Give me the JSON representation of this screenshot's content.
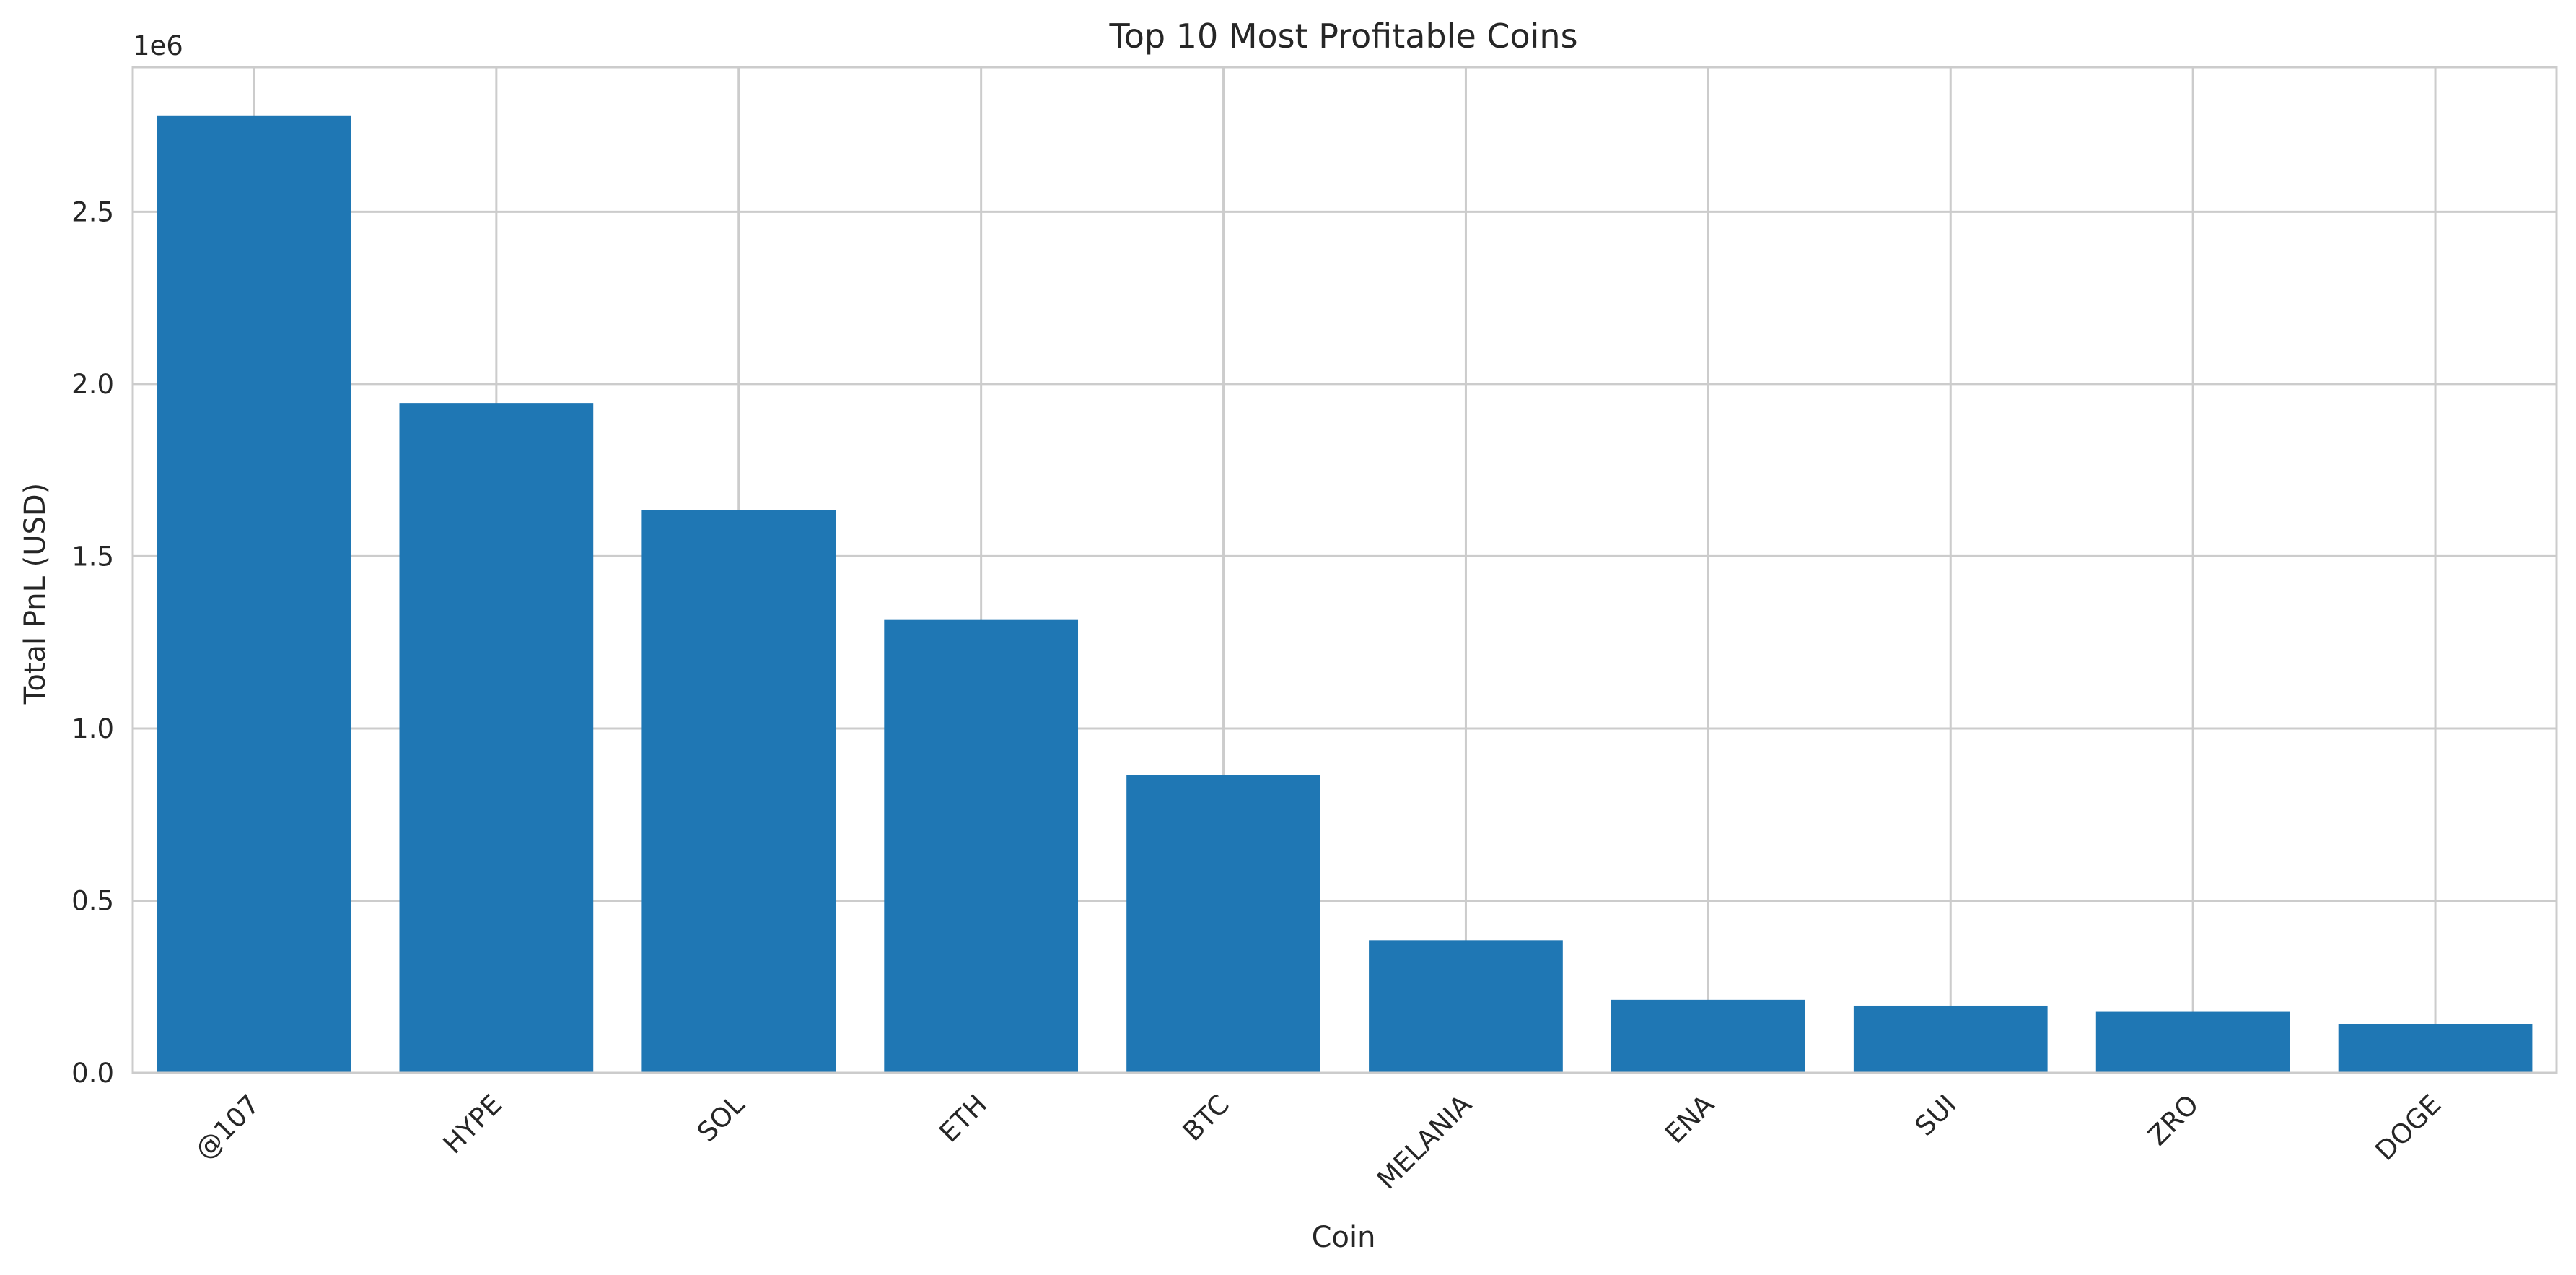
{
  "chart_data": {
    "type": "bar",
    "title": "Top 10 Most Profitable Coins",
    "xlabel": "Coin",
    "ylabel": "Total PnL (USD)",
    "offset_label": "1e6",
    "categories": [
      "@107",
      "HYPE",
      "SOL",
      "ETH",
      "BTC",
      "MELANIA",
      "ENA",
      "SUI",
      "ZRO",
      "DOGE"
    ],
    "values": [
      2780000,
      1945000,
      1635000,
      1315000,
      865000,
      385000,
      212000,
      195000,
      177000,
      142000
    ],
    "ylim": [
      0,
      2920000
    ],
    "yticks": [
      0,
      500000,
      1000000,
      1500000,
      2000000,
      2500000
    ],
    "ytick_labels": [
      "0.0",
      "0.5",
      "1.0",
      "1.5",
      "2.0",
      "2.5"
    ],
    "grid": true,
    "bar_color": "#1f77b4",
    "grid_color": "#cccccc",
    "frame_color": "#cccccc"
  }
}
